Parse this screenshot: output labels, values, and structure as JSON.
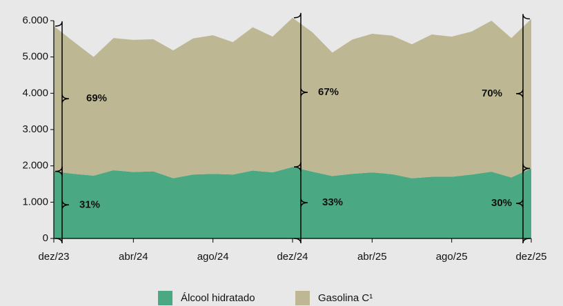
{
  "chart_data": {
    "type": "stacked-area",
    "categories": [
      "dez/23",
      null,
      null,
      null,
      "abr/24",
      null,
      null,
      null,
      "ago/24",
      null,
      null,
      null,
      "dez/24",
      null,
      null,
      null,
      "abr/25",
      null,
      null,
      null,
      "ago/25",
      null,
      null,
      null,
      "dez/25"
    ],
    "series": [
      {
        "name": "Álcool hidratado",
        "color": "#4aa882",
        "values": [
          1850,
          1780,
          1730,
          1880,
          1830,
          1850,
          1660,
          1760,
          1780,
          1760,
          1870,
          1820,
          1970,
          1840,
          1720,
          1780,
          1820,
          1770,
          1660,
          1700,
          1700,
          1760,
          1840,
          1680,
          1930
        ]
      },
      {
        "name": "Gasolina C¹",
        "color": "#bdb893",
        "values": [
          4000,
          3640,
          3270,
          3640,
          3640,
          3640,
          3520,
          3750,
          3820,
          3650,
          3950,
          3740,
          4110,
          3840,
          3400,
          3700,
          3820,
          3820,
          3690,
          3920,
          3860,
          3940,
          4160,
          3840,
          4120
        ]
      }
    ],
    "ylim": [
      0,
      6000
    ],
    "yticks": [
      0,
      {
        "value": 1000,
        "label": "1.000"
      },
      {
        "value": 2000,
        "label": "2.000"
      },
      {
        "value": 3000,
        "label": "3.000"
      },
      {
        "value": 4000,
        "label": "4.000"
      },
      {
        "value": 5000,
        "label": "5.000"
      },
      {
        "value": 6000,
        "label": "6.000"
      }
    ],
    "annotations": [
      {
        "text": "31%"
      },
      {
        "text": "69%"
      },
      {
        "text": "33%"
      },
      {
        "text": "67%"
      },
      {
        "text": "30%"
      },
      {
        "text": "70%"
      }
    ]
  }
}
